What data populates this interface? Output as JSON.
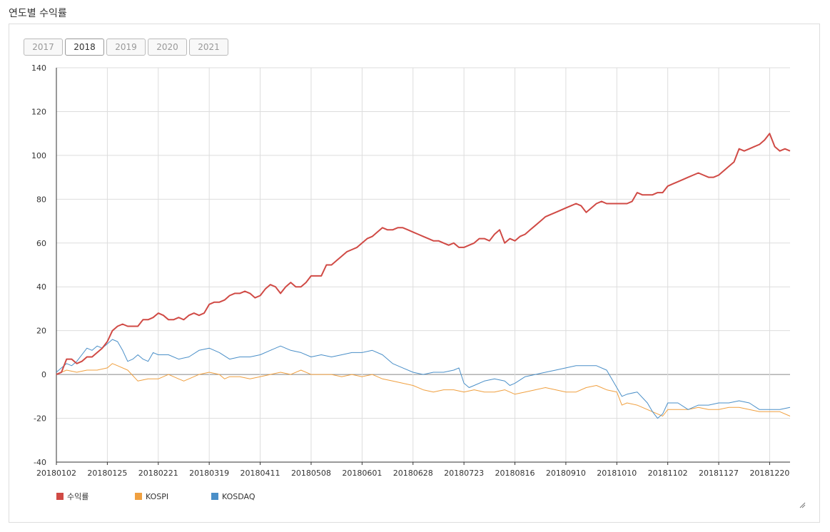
{
  "page": {
    "title": "연도별 수익률"
  },
  "tabs": [
    {
      "label": "2017",
      "active": false
    },
    {
      "label": "2018",
      "active": true
    },
    {
      "label": "2019",
      "active": false
    },
    {
      "label": "2020",
      "active": false
    },
    {
      "label": "2021",
      "active": false
    }
  ],
  "chart_data": {
    "type": "line",
    "ylim": [
      -40,
      140
    ],
    "yticks": [
      -40,
      -20,
      0,
      20,
      40,
      60,
      80,
      100,
      120,
      140
    ],
    "xlim": [
      0,
      72
    ],
    "xticks": [
      {
        "x": 0,
        "label": "20180102"
      },
      {
        "x": 5,
        "label": "20180125"
      },
      {
        "x": 10,
        "label": "20180221"
      },
      {
        "x": 15,
        "label": "20180319"
      },
      {
        "x": 20,
        "label": "20180411"
      },
      {
        "x": 25,
        "label": "20180508"
      },
      {
        "x": 30,
        "label": "20180601"
      },
      {
        "x": 35,
        "label": "20180628"
      },
      {
        "x": 40,
        "label": "20180723"
      },
      {
        "x": 45,
        "label": "20180816"
      },
      {
        "x": 50,
        "label": "20180910"
      },
      {
        "x": 55,
        "label": "20181010"
      },
      {
        "x": 60,
        "label": "20181102"
      },
      {
        "x": 65,
        "label": "20181127"
      },
      {
        "x": 70,
        "label": "20181220"
      }
    ],
    "grid": true,
    "legend_position": "bottom-left",
    "series": [
      {
        "name": "수익률",
        "color": "#d04a45",
        "width": 2,
        "points": [
          [
            0,
            0
          ],
          [
            0.5,
            1
          ],
          [
            1,
            7
          ],
          [
            1.5,
            7
          ],
          [
            2,
            5
          ],
          [
            2.5,
            6
          ],
          [
            3,
            8
          ],
          [
            3.5,
            8
          ],
          [
            4,
            10
          ],
          [
            4.5,
            12
          ],
          [
            5,
            15
          ],
          [
            5.5,
            20
          ],
          [
            6,
            22
          ],
          [
            6.5,
            23
          ],
          [
            7,
            22
          ],
          [
            7.5,
            22
          ],
          [
            8,
            22
          ],
          [
            8.5,
            25
          ],
          [
            9,
            25
          ],
          [
            9.5,
            26
          ],
          [
            10,
            28
          ],
          [
            10.5,
            27
          ],
          [
            11,
            25
          ],
          [
            11.5,
            25
          ],
          [
            12,
            26
          ],
          [
            12.5,
            25
          ],
          [
            13,
            27
          ],
          [
            13.5,
            28
          ],
          [
            14,
            27
          ],
          [
            14.5,
            28
          ],
          [
            15,
            32
          ],
          [
            15.5,
            33
          ],
          [
            16,
            33
          ],
          [
            16.5,
            34
          ],
          [
            17,
            36
          ],
          [
            17.5,
            37
          ],
          [
            18,
            37
          ],
          [
            18.5,
            38
          ],
          [
            19,
            37
          ],
          [
            19.5,
            35
          ],
          [
            20,
            36
          ],
          [
            20.5,
            39
          ],
          [
            21,
            41
          ],
          [
            21.5,
            40
          ],
          [
            22,
            37
          ],
          [
            22.5,
            40
          ],
          [
            23,
            42
          ],
          [
            23.5,
            40
          ],
          [
            24,
            40
          ],
          [
            24.5,
            42
          ],
          [
            25,
            45
          ],
          [
            25.5,
            45
          ],
          [
            26,
            45
          ],
          [
            26.5,
            50
          ],
          [
            27,
            50
          ],
          [
            27.5,
            52
          ],
          [
            28,
            54
          ],
          [
            28.5,
            56
          ],
          [
            29,
            57
          ],
          [
            29.5,
            58
          ],
          [
            30,
            60
          ],
          [
            30.5,
            62
          ],
          [
            31,
            63
          ],
          [
            31.5,
            65
          ],
          [
            32,
            67
          ],
          [
            32.5,
            66
          ],
          [
            33,
            66
          ],
          [
            33.5,
            67
          ],
          [
            34,
            67
          ],
          [
            34.5,
            66
          ],
          [
            35,
            65
          ],
          [
            35.5,
            64
          ],
          [
            36,
            63
          ],
          [
            36.5,
            62
          ],
          [
            37,
            61
          ],
          [
            37.5,
            61
          ],
          [
            38,
            60
          ],
          [
            38.5,
            59
          ],
          [
            39,
            60
          ],
          [
            39.5,
            58
          ],
          [
            40,
            58
          ],
          [
            40.5,
            59
          ],
          [
            41,
            60
          ],
          [
            41.5,
            62
          ],
          [
            42,
            62
          ],
          [
            42.5,
            61
          ],
          [
            43,
            64
          ],
          [
            43.5,
            66
          ],
          [
            44,
            60
          ],
          [
            44.5,
            62
          ],
          [
            45,
            61
          ],
          [
            45.5,
            63
          ],
          [
            46,
            64
          ],
          [
            46.5,
            66
          ],
          [
            47,
            68
          ],
          [
            47.5,
            70
          ],
          [
            48,
            72
          ],
          [
            48.5,
            73
          ],
          [
            49,
            74
          ],
          [
            49.5,
            75
          ],
          [
            50,
            76
          ],
          [
            50.5,
            77
          ],
          [
            51,
            78
          ],
          [
            51.5,
            77
          ],
          [
            52,
            74
          ],
          [
            52.5,
            76
          ],
          [
            53,
            78
          ],
          [
            53.5,
            79
          ],
          [
            54,
            78
          ],
          [
            54.5,
            78
          ],
          [
            55,
            78
          ],
          [
            55.5,
            78
          ],
          [
            56,
            78
          ],
          [
            56.5,
            79
          ],
          [
            57,
            83
          ],
          [
            57.5,
            82
          ],
          [
            58,
            82
          ],
          [
            58.5,
            82
          ],
          [
            59,
            83
          ],
          [
            59.5,
            83
          ],
          [
            60,
            86
          ],
          [
            60.5,
            87
          ],
          [
            61,
            88
          ],
          [
            61.5,
            89
          ],
          [
            62,
            90
          ],
          [
            62.5,
            91
          ],
          [
            63,
            92
          ],
          [
            63.5,
            91
          ],
          [
            64,
            90
          ],
          [
            64.5,
            90
          ],
          [
            65,
            91
          ],
          [
            65.5,
            93
          ],
          [
            66,
            95
          ],
          [
            66.5,
            97
          ],
          [
            67,
            103
          ],
          [
            67.5,
            102
          ],
          [
            68,
            103
          ],
          [
            68.5,
            104
          ],
          [
            69,
            105
          ],
          [
            69.5,
            107
          ],
          [
            70,
            110
          ],
          [
            70.5,
            104
          ],
          [
            71,
            102
          ],
          [
            71.5,
            103
          ],
          [
            72,
            102
          ]
        ]
      },
      {
        "name": "KOSPI",
        "color": "#f0a040",
        "width": 1,
        "points": [
          [
            0,
            0
          ],
          [
            1,
            2
          ],
          [
            2,
            1
          ],
          [
            3,
            2
          ],
          [
            4,
            2
          ],
          [
            5,
            3
          ],
          [
            5.5,
            5
          ],
          [
            6,
            4
          ],
          [
            7,
            2
          ],
          [
            8,
            -3
          ],
          [
            9,
            -2
          ],
          [
            10,
            -2
          ],
          [
            10.5,
            -1
          ],
          [
            11,
            0
          ],
          [
            12,
            -2
          ],
          [
            12.5,
            -3
          ],
          [
            13,
            -2
          ],
          [
            14,
            0
          ],
          [
            15,
            1
          ],
          [
            16,
            0
          ],
          [
            16.5,
            -2
          ],
          [
            17,
            -1
          ],
          [
            18,
            -1
          ],
          [
            19,
            -2
          ],
          [
            20,
            -1
          ],
          [
            21,
            0
          ],
          [
            22,
            1
          ],
          [
            23,
            0
          ],
          [
            24,
            2
          ],
          [
            25,
            0
          ],
          [
            26,
            0
          ],
          [
            27,
            0
          ],
          [
            28,
            -1
          ],
          [
            29,
            0
          ],
          [
            30,
            -1
          ],
          [
            31,
            0
          ],
          [
            32,
            -2
          ],
          [
            33,
            -3
          ],
          [
            34,
            -4
          ],
          [
            35,
            -5
          ],
          [
            36,
            -7
          ],
          [
            37,
            -8
          ],
          [
            38,
            -7
          ],
          [
            39,
            -7
          ],
          [
            40,
            -8
          ],
          [
            41,
            -7
          ],
          [
            42,
            -8
          ],
          [
            43,
            -8
          ],
          [
            44,
            -7
          ],
          [
            45,
            -9
          ],
          [
            46,
            -8
          ],
          [
            47,
            -7
          ],
          [
            48,
            -6
          ],
          [
            49,
            -7
          ],
          [
            50,
            -8
          ],
          [
            51,
            -8
          ],
          [
            52,
            -6
          ],
          [
            53,
            -5
          ],
          [
            54,
            -7
          ],
          [
            55,
            -8
          ],
          [
            55.5,
            -14
          ],
          [
            56,
            -13
          ],
          [
            57,
            -14
          ],
          [
            58,
            -16
          ],
          [
            59,
            -18
          ],
          [
            59.5,
            -19
          ],
          [
            60,
            -16
          ],
          [
            61,
            -16
          ],
          [
            62,
            -16
          ],
          [
            63,
            -15
          ],
          [
            64,
            -16
          ],
          [
            65,
            -16
          ],
          [
            66,
            -15
          ],
          [
            67,
            -15
          ],
          [
            68,
            -16
          ],
          [
            69,
            -17
          ],
          [
            70,
            -17
          ],
          [
            71,
            -17
          ],
          [
            72,
            -19
          ]
        ]
      },
      {
        "name": "KOSDAQ",
        "color": "#4a8fc8",
        "width": 1,
        "points": [
          [
            0,
            1
          ],
          [
            0.5,
            3
          ],
          [
            1,
            5
          ],
          [
            1.5,
            4
          ],
          [
            2,
            6
          ],
          [
            2.5,
            9
          ],
          [
            3,
            12
          ],
          [
            3.5,
            11
          ],
          [
            4,
            13
          ],
          [
            4.5,
            12
          ],
          [
            5,
            14
          ],
          [
            5.5,
            16
          ],
          [
            6,
            15
          ],
          [
            6.5,
            11
          ],
          [
            7,
            6
          ],
          [
            7.5,
            7
          ],
          [
            8,
            9
          ],
          [
            8.5,
            7
          ],
          [
            9,
            6
          ],
          [
            9.5,
            10
          ],
          [
            10,
            9
          ],
          [
            11,
            9
          ],
          [
            12,
            7
          ],
          [
            13,
            8
          ],
          [
            14,
            11
          ],
          [
            15,
            12
          ],
          [
            16,
            10
          ],
          [
            17,
            7
          ],
          [
            18,
            8
          ],
          [
            19,
            8
          ],
          [
            20,
            9
          ],
          [
            21,
            11
          ],
          [
            22,
            13
          ],
          [
            23,
            11
          ],
          [
            24,
            10
          ],
          [
            25,
            8
          ],
          [
            26,
            9
          ],
          [
            27,
            8
          ],
          [
            28,
            9
          ],
          [
            29,
            10
          ],
          [
            30,
            10
          ],
          [
            31,
            11
          ],
          [
            32,
            9
          ],
          [
            33,
            5
          ],
          [
            34,
            3
          ],
          [
            35,
            1
          ],
          [
            36,
            0
          ],
          [
            37,
            1
          ],
          [
            38,
            1
          ],
          [
            39,
            2
          ],
          [
            39.5,
            3
          ],
          [
            40,
            -4
          ],
          [
            40.5,
            -6
          ],
          [
            41,
            -5
          ],
          [
            42,
            -3
          ],
          [
            43,
            -2
          ],
          [
            44,
            -3
          ],
          [
            44.5,
            -5
          ],
          [
            45,
            -4
          ],
          [
            46,
            -1
          ],
          [
            47,
            0
          ],
          [
            48,
            1
          ],
          [
            49,
            2
          ],
          [
            50,
            3
          ],
          [
            51,
            4
          ],
          [
            52,
            4
          ],
          [
            53,
            4
          ],
          [
            54,
            2
          ],
          [
            55,
            -6
          ],
          [
            55.5,
            -10
          ],
          [
            56,
            -9
          ],
          [
            57,
            -8
          ],
          [
            58,
            -13
          ],
          [
            58.5,
            -17
          ],
          [
            59,
            -20
          ],
          [
            59.5,
            -18
          ],
          [
            60,
            -13
          ],
          [
            61,
            -13
          ],
          [
            62,
            -16
          ],
          [
            63,
            -14
          ],
          [
            64,
            -14
          ],
          [
            65,
            -13
          ],
          [
            66,
            -13
          ],
          [
            67,
            -12
          ],
          [
            68,
            -13
          ],
          [
            69,
            -16
          ],
          [
            70,
            -16
          ],
          [
            71,
            -16
          ],
          [
            72,
            -15
          ]
        ]
      }
    ]
  }
}
